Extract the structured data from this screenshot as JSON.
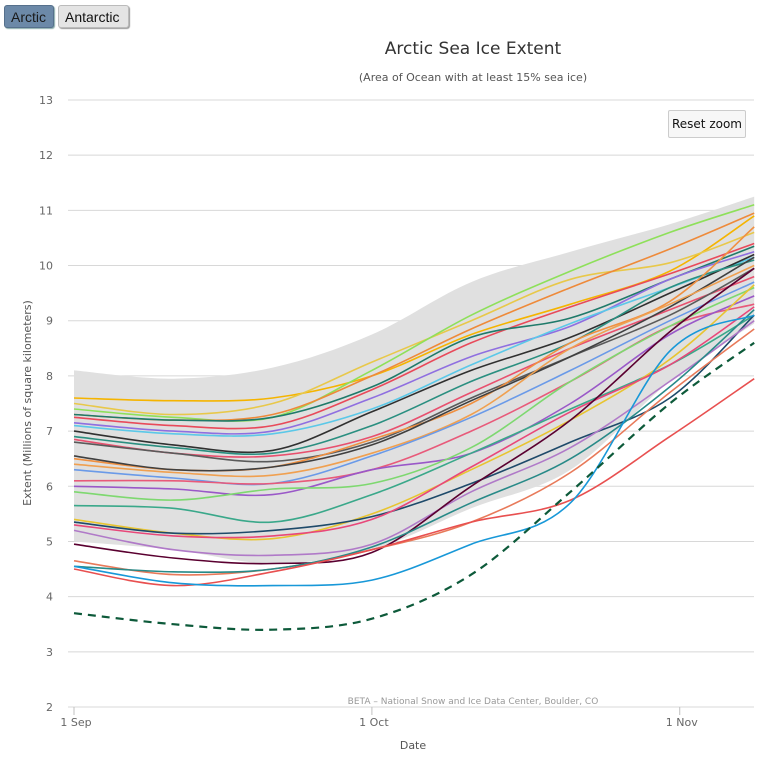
{
  "hemisphere_buttons": [
    {
      "label": "Arctic",
      "active": true
    },
    {
      "label": "Antarctic",
      "active": false
    }
  ],
  "reset_zoom_label": "Reset zoom",
  "chart_data": {
    "type": "line",
    "title": "Arctic Sea Ice Extent",
    "subtitle": "(Area of Ocean with at least 15% sea ice)",
    "xlabel": "Date",
    "ylabel": "Extent (Millions of square kilometers)",
    "credit": "BETA – National Snow and Ice Data Center, Boulder, CO",
    "x_unit": "days since 1 Sep",
    "xlim": [
      0,
      68.5
    ],
    "ylim": [
      2,
      13
    ],
    "yticks": [
      "2",
      "3",
      "4",
      "5",
      "6",
      "7",
      "8",
      "9",
      "10",
      "11",
      "12",
      "13"
    ],
    "xticks": [
      {
        "label": "1 Sep",
        "day": 0
      },
      {
        "label": "1 Oct",
        "day": 30
      },
      {
        "label": "1 Nov",
        "day": 61
      }
    ],
    "grid": true,
    "legend": "none",
    "x": [
      0,
      10,
      20,
      30,
      40,
      50,
      60,
      68.5
    ],
    "range_band": {
      "name": "interdecile range",
      "color": "#e0e0e0",
      "upper": [
        8.1,
        7.95,
        8.15,
        8.75,
        9.7,
        10.25,
        10.75,
        11.25
      ],
      "lower": [
        5.0,
        4.85,
        4.6,
        4.85,
        5.6,
        6.3,
        7.9,
        8.95
      ]
    },
    "series": [
      {
        "color": "#f5b400",
        "values": [
          7.6,
          7.55,
          7.6,
          8.0,
          8.75,
          9.3,
          9.9,
          10.9
        ]
      },
      {
        "color": "#e8c84a",
        "values": [
          7.5,
          7.3,
          7.5,
          8.25,
          9.0,
          9.75,
          10.05,
          10.6
        ]
      },
      {
        "color": "#8ee05a",
        "values": [
          7.4,
          7.25,
          7.25,
          8.1,
          9.1,
          9.9,
          10.6,
          11.1
        ]
      },
      {
        "color": "#ee8a3a",
        "values": [
          7.3,
          7.2,
          7.3,
          8.0,
          8.85,
          9.6,
          10.3,
          10.95
        ]
      },
      {
        "color": "#e84a5a",
        "values": [
          7.25,
          7.1,
          7.1,
          7.75,
          8.6,
          9.25,
          9.85,
          10.4
        ]
      },
      {
        "color": "#1f7a6a",
        "values": [
          7.3,
          7.2,
          7.25,
          7.8,
          8.7,
          9.05,
          9.75,
          10.35
        ]
      },
      {
        "color": "#8f6fe0",
        "values": [
          7.15,
          7.0,
          7.0,
          7.6,
          8.35,
          8.9,
          9.75,
          10.25
        ]
      },
      {
        "color": "#5bc8e8",
        "values": [
          7.1,
          6.95,
          6.95,
          7.4,
          8.2,
          8.95,
          9.6,
          10.15
        ]
      },
      {
        "color": "#303030",
        "values": [
          7.0,
          6.75,
          6.65,
          7.35,
          8.1,
          8.7,
          9.5,
          10.2
        ]
      },
      {
        "color": "#2a8f80",
        "values": [
          6.9,
          6.7,
          6.6,
          7.1,
          7.9,
          8.6,
          9.6,
          10.1
        ]
      },
      {
        "color": "#e8506e",
        "values": [
          6.85,
          6.6,
          6.55,
          6.9,
          7.7,
          8.5,
          9.2,
          9.8
        ]
      },
      {
        "color": "#5a5a5a",
        "values": [
          6.8,
          6.6,
          6.45,
          6.8,
          7.6,
          8.35,
          9.1,
          9.95
        ]
      },
      {
        "color": "#f09040",
        "values": [
          6.5,
          6.3,
          6.35,
          6.85,
          7.5,
          8.6,
          9.35,
          10.7
        ]
      },
      {
        "color": "#404040",
        "values": [
          6.55,
          6.3,
          6.35,
          6.75,
          7.55,
          8.35,
          9.25,
          10.15
        ]
      },
      {
        "color": "#f0a050",
        "values": [
          6.4,
          6.25,
          6.2,
          6.6,
          7.3,
          8.5,
          9.3,
          10.0
        ]
      },
      {
        "color": "#6a9ae8",
        "values": [
          6.3,
          6.15,
          6.05,
          6.55,
          7.25,
          8.1,
          9.0,
          9.7
        ]
      },
      {
        "color": "#e85a7a",
        "values": [
          6.1,
          6.1,
          6.05,
          6.3,
          7.0,
          7.9,
          8.9,
          9.3
        ]
      },
      {
        "color": "#9a58c8",
        "values": [
          6.0,
          5.95,
          5.85,
          6.3,
          6.6,
          7.5,
          8.75,
          9.45
        ]
      },
      {
        "color": "#7ed870",
        "values": [
          5.9,
          5.75,
          5.95,
          6.05,
          6.7,
          7.9,
          8.9,
          9.6
        ]
      },
      {
        "color": "#3aa88a",
        "values": [
          5.65,
          5.6,
          5.35,
          5.85,
          6.6,
          7.4,
          8.2,
          9.1
        ]
      },
      {
        "color": "#e8c430",
        "values": [
          5.4,
          5.15,
          5.05,
          5.5,
          6.3,
          7.2,
          8.3,
          9.65
        ]
      },
      {
        "color": "#1e4a6a",
        "values": [
          5.35,
          5.15,
          5.2,
          5.45,
          6.05,
          6.8,
          7.6,
          9.1
        ]
      },
      {
        "color": "#e8487a",
        "values": [
          5.3,
          5.1,
          5.1,
          5.4,
          6.35,
          7.35,
          8.2,
          9.25
        ]
      },
      {
        "color": "#b07ac8",
        "values": [
          5.2,
          4.85,
          4.75,
          4.95,
          5.9,
          6.7,
          7.9,
          9.0
        ]
      },
      {
        "color": "#5a0030",
        "values": [
          4.95,
          4.7,
          4.6,
          4.8,
          6.0,
          7.2,
          8.8,
          9.95
        ]
      },
      {
        "color": "#e87a5a",
        "values": [
          4.65,
          4.4,
          4.5,
          4.85,
          5.35,
          6.25,
          7.7,
          8.85
        ]
      },
      {
        "color": "#288a88",
        "values": [
          4.55,
          4.45,
          4.5,
          4.9,
          5.7,
          6.5,
          7.8,
          9.2
        ]
      },
      {
        "color": "#e85050",
        "values": [
          4.5,
          4.2,
          4.45,
          4.85,
          5.35,
          5.75,
          6.9,
          7.95
        ]
      },
      {
        "color": "#1898d8",
        "values": [
          4.55,
          4.25,
          4.2,
          4.3,
          4.95,
          5.7,
          8.45,
          9.1
        ]
      },
      {
        "color": "#0d5a3a",
        "dashed": true,
        "values": [
          3.7,
          3.5,
          3.4,
          3.6,
          4.4,
          5.9,
          7.5,
          8.6
        ]
      }
    ]
  }
}
